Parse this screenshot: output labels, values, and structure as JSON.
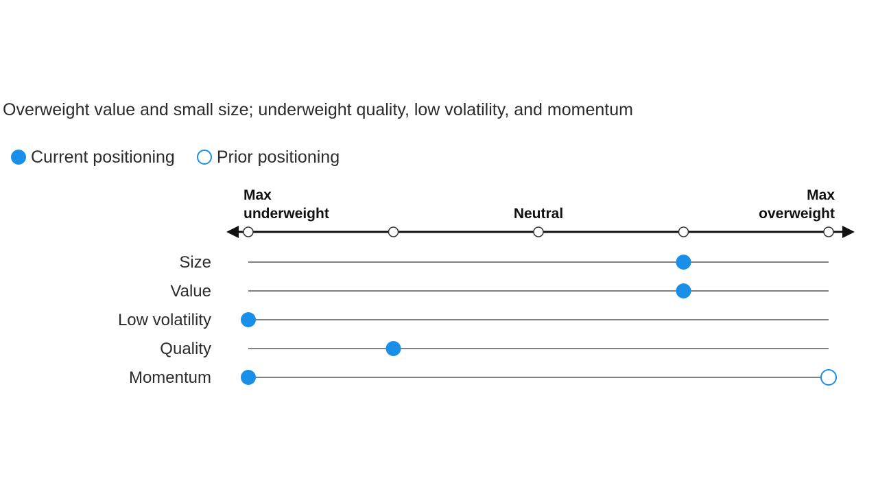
{
  "subtitle": "Overweight value and small size; underweight quality, low volatility, and momentum",
  "legend": {
    "current": "Current positioning",
    "prior": "Prior positioning"
  },
  "colors": {
    "accent": "#1a8fe8",
    "axis": "#111111",
    "line": "#333333"
  },
  "chart_data": {
    "type": "scatter",
    "scale_positions": [
      -2,
      -1,
      0,
      1,
      2
    ],
    "xlim": [
      -2,
      2
    ],
    "scale_labels": [
      {
        "value": -2,
        "lines": [
          "Max",
          "underweight"
        ],
        "align": "start"
      },
      {
        "value": 0,
        "lines": [
          "Neutral"
        ],
        "align": "middle"
      },
      {
        "value": 2,
        "lines": [
          "Max",
          "overweight"
        ],
        "align": "end"
      }
    ],
    "factors": [
      {
        "name": "Size",
        "current": 1,
        "prior": null
      },
      {
        "name": "Value",
        "current": 1,
        "prior": null
      },
      {
        "name": "Low volatility",
        "current": -2,
        "prior": null
      },
      {
        "name": "Quality",
        "current": -1,
        "prior": null
      },
      {
        "name": "Momentum",
        "current": -2,
        "prior": 2
      }
    ]
  }
}
